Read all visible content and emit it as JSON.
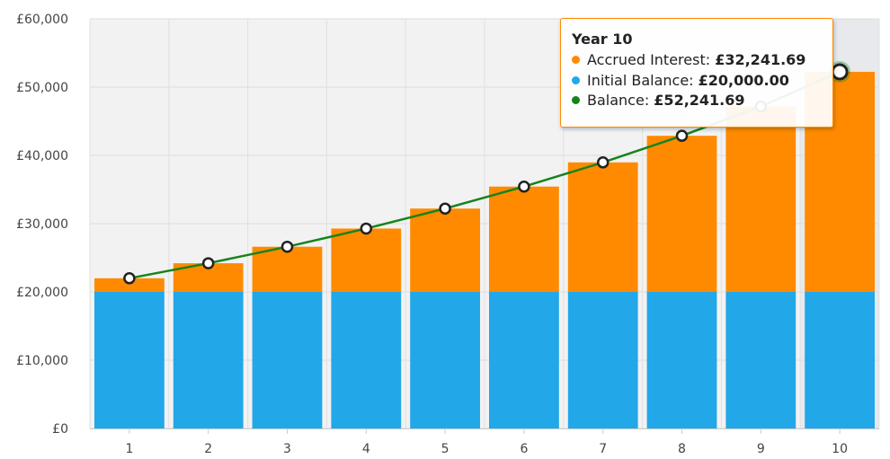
{
  "chart_data": {
    "type": "bar",
    "stacked": true,
    "categories": [
      "1",
      "2",
      "3",
      "4",
      "5",
      "6",
      "7",
      "8",
      "9",
      "10"
    ],
    "series": [
      {
        "name": "Initial Balance",
        "type": "bar",
        "color": "#22a7e9",
        "values": [
          20000,
          20000,
          20000,
          20000,
          20000,
          20000,
          20000,
          20000,
          20000,
          20000
        ]
      },
      {
        "name": "Accrued Interest",
        "type": "bar",
        "color": "#ff8a00",
        "values": [
          2000,
          4200,
          6620,
          9282,
          12210,
          15431,
          18974,
          22872,
          27159,
          32241.69
        ]
      },
      {
        "name": "Balance",
        "type": "line",
        "color": "#17831b",
        "values": [
          22000,
          24200,
          26620,
          29282,
          32210,
          35431,
          38974,
          42872,
          47159,
          52241.69
        ]
      }
    ],
    "y_ticks": [
      "£0",
      "£10,000",
      "£20,000",
      "£30,000",
      "£40,000",
      "£50,000",
      "£60,000"
    ],
    "ylim": [
      0,
      60000
    ],
    "grid": true,
    "highlighted_index": 9,
    "tooltip": {
      "title": "Year 10",
      "rows": [
        {
          "label": "Accrued Interest: ",
          "value": "£32,241.69",
          "color": "#ff8a00"
        },
        {
          "label": "Initial Balance: ",
          "value": "£20,000.00",
          "color": "#22a7e9"
        },
        {
          "label": "Balance: ",
          "value": "£52,241.69",
          "color": "#17831b"
        }
      ]
    }
  }
}
